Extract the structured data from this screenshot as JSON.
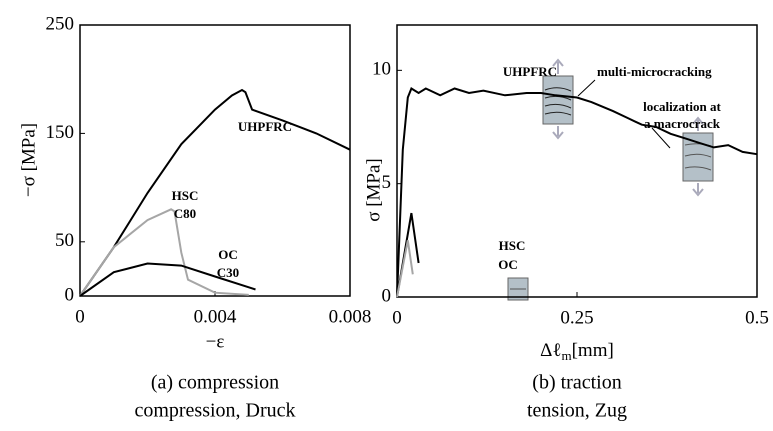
{
  "chart_data": [
    {
      "type": "line",
      "y_label": "−σ [MPa]",
      "x_label": "−ε",
      "caption": [
        "(a) compression",
        "compression, Druck"
      ],
      "xlim": [
        0,
        0.008
      ],
      "xticks": [
        0,
        0.004,
        0.008
      ],
      "ylim": [
        0,
        250
      ],
      "yticks": [
        0,
        50,
        150,
        250
      ],
      "series": [
        {
          "name": "UHPFRC",
          "color": "#000000",
          "x": [
            0,
            0.001,
            0.002,
            0.003,
            0.004,
            0.0045,
            0.0048,
            0.0049,
            0.0051,
            0.006,
            0.007,
            0.008
          ],
          "values": [
            0,
            45,
            95,
            140,
            172,
            185,
            190,
            188,
            172,
            162,
            150,
            135
          ]
        },
        {
          "name": "HSC",
          "grade": "C80",
          "color": "#a6a6a6",
          "x": [
            0,
            0.001,
            0.002,
            0.0027,
            0.0028,
            0.003,
            0.0032,
            0.004,
            0.005
          ],
          "values": [
            0,
            45,
            70,
            80,
            78,
            40,
            15,
            3,
            1
          ]
        },
        {
          "name": "OC",
          "grade": "C30",
          "color": "#000000",
          "x": [
            0,
            0.001,
            0.002,
            0.003,
            0.004,
            0.005,
            0.0052
          ],
          "values": [
            0,
            22,
            30,
            28,
            18,
            8,
            6
          ]
        }
      ]
    },
    {
      "type": "line",
      "y_label": "σ [MPa]",
      "x_label": {
        "symbol": "Δℓ",
        "subscript": "m",
        "unit": "[mm]"
      },
      "caption": [
        "(b) traction",
        "tension, Zug"
      ],
      "annotations": [
        "multi-microcracking",
        "localization at",
        "a macrocrack"
      ],
      "xlim": [
        0,
        0.5
      ],
      "xticks": [
        0,
        0.25,
        0.5
      ],
      "ylim": [
        0,
        12
      ],
      "yticks": [
        0,
        5,
        10
      ],
      "series": [
        {
          "name": "UHPFRC",
          "color": "#000000",
          "x": [
            0,
            0.008,
            0.015,
            0.02,
            0.03,
            0.04,
            0.06,
            0.08,
            0.1,
            0.12,
            0.15,
            0.18,
            0.2,
            0.22,
            0.25,
            0.27,
            0.3,
            0.32,
            0.34,
            0.36,
            0.38,
            0.4,
            0.42,
            0.44,
            0.46,
            0.48,
            0.5
          ],
          "values": [
            0,
            6.5,
            8.8,
            9.2,
            9.0,
            9.2,
            8.9,
            9.2,
            9.0,
            9.1,
            8.9,
            9.0,
            9.0,
            8.9,
            8.8,
            8.6,
            8.2,
            7.9,
            7.6,
            7.5,
            7.2,
            7.0,
            6.8,
            6.6,
            6.7,
            6.4,
            6.3
          ]
        },
        {
          "name": "HSC",
          "color": "#000000",
          "x": [
            0,
            0.02,
            0.03
          ],
          "values": [
            0,
            3.7,
            1.5
          ]
        },
        {
          "name": "OC",
          "color": "#a6a6a6",
          "x": [
            0,
            0.015,
            0.022
          ],
          "values": [
            0,
            2.5,
            1.0
          ]
        }
      ]
    }
  ]
}
